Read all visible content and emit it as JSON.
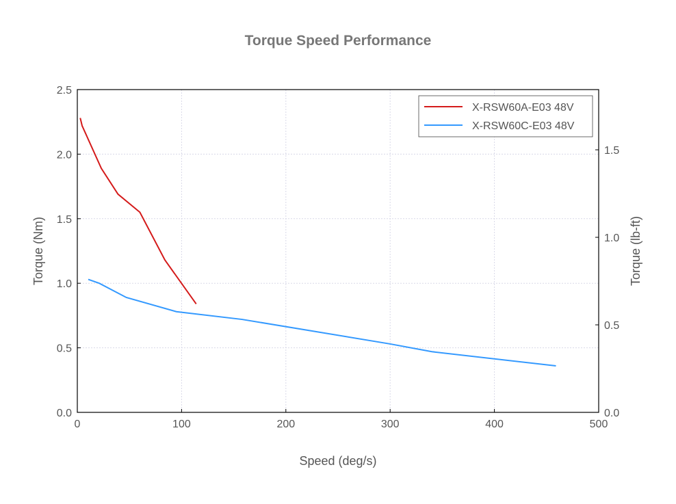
{
  "chart_data": {
    "type": "line",
    "title": "Torque Speed Performance",
    "xlabel": "Speed (deg/s)",
    "ylabel": "Torque (Nm)",
    "y2label": "Torque (lb-ft)",
    "xlim": [
      0,
      500
    ],
    "ylim": [
      0,
      2.5
    ],
    "y2lim": [
      0,
      1.844
    ],
    "xticks": [
      0,
      100,
      200,
      300,
      400,
      500
    ],
    "yticks": [
      0.0,
      0.5,
      1.0,
      1.5,
      2.0,
      2.5
    ],
    "y2ticks": [
      0.0,
      0.5,
      1.0,
      1.5
    ],
    "grid": true,
    "legend": "top-right",
    "series": [
      {
        "name": "X-RSW60A-E03 48V",
        "color": "#d41a1a",
        "x": [
          2.8,
          4.6,
          23,
          39,
          60,
          84,
          114
        ],
        "y": [
          2.28,
          2.22,
          1.89,
          1.69,
          1.55,
          1.18,
          0.84
        ]
      },
      {
        "name": "X-RSW60C-E03 48V",
        "color": "#3399ff",
        "x": [
          10.5,
          21,
          47,
          95,
          158,
          300,
          340,
          459
        ],
        "y": [
          1.03,
          1.0,
          0.89,
          0.78,
          0.72,
          0.53,
          0.47,
          0.36
        ]
      }
    ]
  }
}
